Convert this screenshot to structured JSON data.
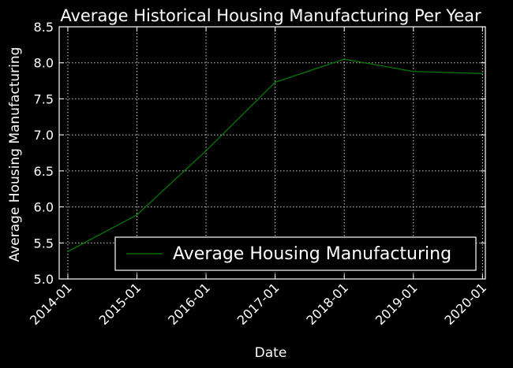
{
  "chart_data": {
    "type": "line",
    "title": "Average Historical Housing Manufacturing Per Year",
    "xlabel": "Date",
    "ylabel": "Average Housing Manufacturing",
    "x": [
      "2014-01",
      "2015-01",
      "2016-01",
      "2017-01",
      "2018-01",
      "2019-01",
      "2020-01"
    ],
    "xlim": [
      "2013-12",
      "2020-01"
    ],
    "ylim": [
      5.0,
      8.5
    ],
    "yticks": [
      "5.0",
      "5.5",
      "6.0",
      "6.5",
      "7.0",
      "7.5",
      "8.0",
      "8.5"
    ],
    "series": [
      {
        "name": "Average Housing Manufacturing",
        "color": "#008000",
        "values": [
          5.38,
          5.89,
          6.78,
          7.73,
          8.05,
          7.88,
          7.85
        ]
      }
    ],
    "grid": true,
    "legend": "lower-right",
    "background": "#000000"
  }
}
